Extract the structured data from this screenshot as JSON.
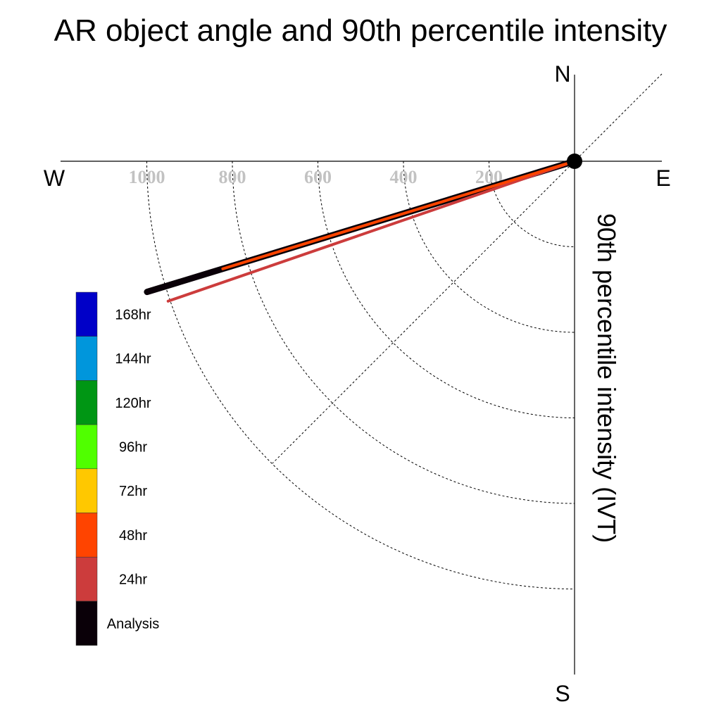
{
  "chart_data": {
    "type": "polar-vector",
    "title": "AR object angle and 90th percentile intensity",
    "ylabel": "90th percentile intensity (IVT)",
    "compass": {
      "north": "N",
      "south": "S",
      "east": "E",
      "west": "W"
    },
    "radial_ticks": [
      {
        "value": 200,
        "label": "200"
      },
      {
        "value": 400,
        "label": "400"
      },
      {
        "value": 600,
        "label": "600"
      },
      {
        "value": 800,
        "label": "800"
      },
      {
        "value": 1000,
        "label": "1000"
      }
    ],
    "rlim": [
      0,
      1000
    ],
    "grid": true,
    "legend_position": "left",
    "series": [
      {
        "name": "Analysis",
        "color": "#0a0008",
        "direction_deg": 253,
        "intensity": 1045
      },
      {
        "name": "24hr",
        "color": "#cc3c3c",
        "direction_deg": 251,
        "intensity": 1005
      },
      {
        "name": "48hr",
        "color": "#ff4400",
        "direction_deg": 253,
        "intensity": 860
      }
    ],
    "legend": [
      {
        "label": "168hr",
        "color": "#0000c8"
      },
      {
        "label": "144hr",
        "color": "#0096dc"
      },
      {
        "label": "120hr",
        "color": "#009614"
      },
      {
        "label": "96hr",
        "color": "#50ff00"
      },
      {
        "label": "72hr",
        "color": "#ffc800"
      },
      {
        "label": "48hr",
        "color": "#ff4400"
      },
      {
        "label": "24hr",
        "color": "#cc3c3c"
      },
      {
        "label": "Analysis",
        "color": "#0a0008"
      }
    ]
  }
}
